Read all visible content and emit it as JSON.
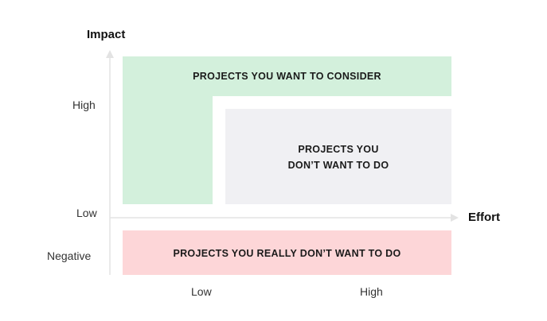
{
  "axes": {
    "y_title": "Impact",
    "x_title": "Effort",
    "y_ticks": [
      "High",
      "Low",
      "Negative"
    ],
    "x_ticks": [
      "Low",
      "High"
    ]
  },
  "zones": {
    "consider": {
      "label": "PROJECTS YOU WANT TO CONSIDER",
      "color": "#d3f0dc"
    },
    "dont_want": {
      "line1": "PROJECTS YOU",
      "line2": "DON’T WANT TO DO",
      "color": "#f0f0f3"
    },
    "really_dont": {
      "label": "PROJECTS YOU REALLY DON’T WANT TO DO",
      "color": "#fdd6d8"
    }
  }
}
